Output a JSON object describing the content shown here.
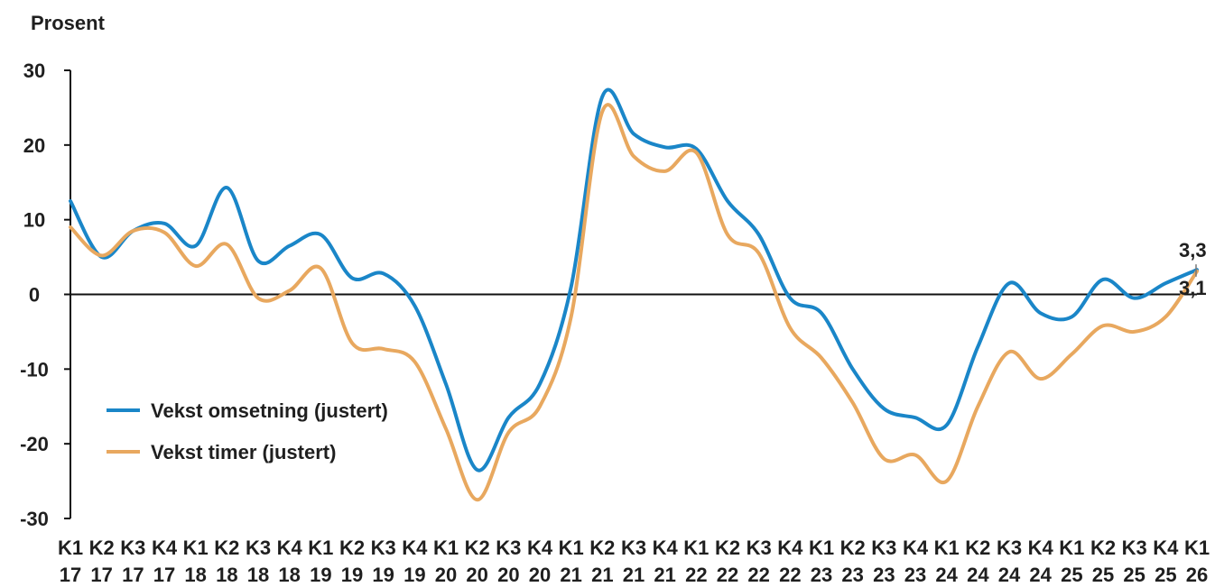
{
  "chart_data": {
    "type": "line",
    "ylabel": "Prosent",
    "ylim": [
      -30,
      30
    ],
    "yticks": [
      "30",
      "20",
      "10",
      "0",
      "-10",
      "-20",
      "-30"
    ],
    "categories": [
      {
        "line1": "K1",
        "line2": "17"
      },
      {
        "line1": "K2",
        "line2": "17"
      },
      {
        "line1": "K3",
        "line2": "17"
      },
      {
        "line1": "K4",
        "line2": "17"
      },
      {
        "line1": "K1",
        "line2": "18"
      },
      {
        "line1": "K2",
        "line2": "18"
      },
      {
        "line1": "K3",
        "line2": "18"
      },
      {
        "line1": "K4",
        "line2": "18"
      },
      {
        "line1": "K1",
        "line2": "19"
      },
      {
        "line1": "K2",
        "line2": "19"
      },
      {
        "line1": "K3",
        "line2": "19"
      },
      {
        "line1": "K4",
        "line2": "19"
      },
      {
        "line1": "K1",
        "line2": "20"
      },
      {
        "line1": "K2",
        "line2": "20"
      },
      {
        "line1": "K3",
        "line2": "20"
      },
      {
        "line1": "K4",
        "line2": "20"
      },
      {
        "line1": "K1",
        "line2": "21"
      },
      {
        "line1": "K2",
        "line2": "21"
      },
      {
        "line1": "K3",
        "line2": "21"
      },
      {
        "line1": "K4",
        "line2": "21"
      },
      {
        "line1": "K1",
        "line2": "22"
      },
      {
        "line1": "K2",
        "line2": "22"
      },
      {
        "line1": "K3",
        "line2": "22"
      },
      {
        "line1": "K4",
        "line2": "22"
      },
      {
        "line1": "K1",
        "line2": "23"
      },
      {
        "line1": "K2",
        "line2": "23"
      },
      {
        "line1": "K3",
        "line2": "23"
      },
      {
        "line1": "K4",
        "line2": "23"
      },
      {
        "line1": "K1",
        "line2": "24"
      },
      {
        "line1": "K2",
        "line2": "24"
      },
      {
        "line1": "K3",
        "line2": "24"
      },
      {
        "line1": "K4",
        "line2": "24"
      },
      {
        "line1": "K1",
        "line2": "25"
      },
      {
        "line1": "K2",
        "line2": "25"
      },
      {
        "line1": "K3",
        "line2": "25"
      },
      {
        "line1": "K4",
        "line2": "25"
      },
      {
        "line1": "K1",
        "line2": "26"
      }
    ],
    "series": [
      {
        "name": "Vekst omsetning (justert)",
        "color": "#1a86c8",
        "values": [
          12.5,
          5.0,
          8.5,
          9.5,
          6.5,
          14.3,
          4.5,
          6.5,
          8.0,
          2.2,
          2.8,
          -1.5,
          -12.0,
          -23.5,
          -16.5,
          -12.0,
          1.0,
          26.5,
          21.5,
          19.7,
          19.5,
          12.5,
          8.0,
          -0.5,
          -2.5,
          -10.0,
          -15.3,
          -16.5,
          -17.5,
          -7.0,
          1.5,
          -2.5,
          -3.0,
          2.0,
          -0.5,
          1.5,
          3.3
        ],
        "end_label": "3,3"
      },
      {
        "name": "Vekst timer (justert)",
        "color": "#e8a85f",
        "values": [
          9.0,
          5.2,
          8.5,
          8.3,
          3.8,
          6.7,
          -0.5,
          0.5,
          3.5,
          -6.5,
          -7.3,
          -9.0,
          -18.0,
          -27.5,
          -18.5,
          -15.0,
          -3.0,
          24.5,
          18.5,
          16.5,
          19.0,
          8.0,
          5.5,
          -4.5,
          -8.5,
          -14.5,
          -22.0,
          -21.5,
          -25.0,
          -15.0,
          -7.7,
          -11.3,
          -8.0,
          -4.2,
          -5.0,
          -3.0,
          3.1
        ],
        "end_label": "3,1"
      }
    ]
  }
}
